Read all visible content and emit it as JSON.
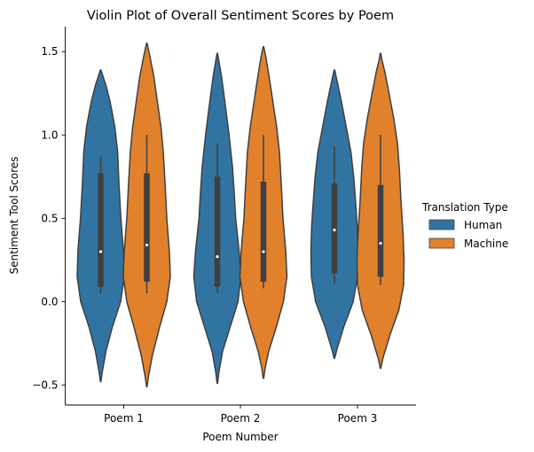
{
  "chart_data": {
    "type": "violin",
    "title": "Violin Plot of Overall Sentiment Scores by Poem",
    "xlabel": "Poem Number",
    "ylabel": "Sentiment Tool Scores",
    "categories": [
      "Poem 1",
      "Poem 2",
      "Poem 3"
    ],
    "ylim": [
      -0.62,
      1.65
    ],
    "yticks": [
      -0.5,
      0.0,
      0.5,
      1.0,
      1.5
    ],
    "ytick_labels": [
      "−0.5",
      "0.0",
      "0.5",
      "1.0",
      "1.5"
    ],
    "grid": false,
    "legend": {
      "title": "Translation Type",
      "placement": "right",
      "entries": [
        "Human",
        "Machine"
      ]
    },
    "series": [
      {
        "name": "Human",
        "color": "#3274a1",
        "violins": [
          {
            "category": "Poem 1",
            "min": -0.48,
            "max": 1.39,
            "q1": 0.09,
            "median": 0.3,
            "q3": 0.77,
            "whisker_low": 0.05,
            "whisker_high": 0.87,
            "profile": [
              [
                -0.48,
                0.01
              ],
              [
                -0.42,
                0.07
              ],
              [
                -0.3,
                0.22
              ],
              [
                -0.15,
                0.5
              ],
              [
                0.0,
                0.85
              ],
              [
                0.15,
                1.0
              ],
              [
                0.3,
                0.97
              ],
              [
                0.5,
                0.86
              ],
              [
                0.7,
                0.78
              ],
              [
                0.9,
                0.72
              ],
              [
                1.05,
                0.6
              ],
              [
                1.2,
                0.4
              ],
              [
                1.3,
                0.22
              ],
              [
                1.36,
                0.08
              ],
              [
                1.39,
                0.01
              ]
            ]
          },
          {
            "category": "Poem 2",
            "min": -0.49,
            "max": 1.49,
            "q1": 0.09,
            "median": 0.27,
            "q3": 0.75,
            "whisker_low": 0.05,
            "whisker_high": 0.95,
            "profile": [
              [
                -0.49,
                0.01
              ],
              [
                -0.42,
                0.07
              ],
              [
                -0.3,
                0.22
              ],
              [
                -0.15,
                0.55
              ],
              [
                0.0,
                0.88
              ],
              [
                0.15,
                1.0
              ],
              [
                0.3,
                0.93
              ],
              [
                0.5,
                0.78
              ],
              [
                0.65,
                0.72
              ],
              [
                0.8,
                0.65
              ],
              [
                1.0,
                0.5
              ],
              [
                1.2,
                0.32
              ],
              [
                1.35,
                0.18
              ],
              [
                1.45,
                0.06
              ],
              [
                1.49,
                0.01
              ]
            ]
          },
          {
            "category": "Poem 3",
            "min": -0.34,
            "max": 1.39,
            "q1": 0.17,
            "median": 0.43,
            "q3": 0.71,
            "whisker_low": 0.11,
            "whisker_high": 0.93,
            "profile": [
              [
                -0.34,
                0.01
              ],
              [
                -0.28,
                0.12
              ],
              [
                -0.15,
                0.4
              ],
              [
                0.0,
                0.8
              ],
              [
                0.15,
                0.98
              ],
              [
                0.3,
                1.0
              ],
              [
                0.45,
                0.97
              ],
              [
                0.6,
                0.9
              ],
              [
                0.75,
                0.82
              ],
              [
                0.9,
                0.7
              ],
              [
                1.05,
                0.5
              ],
              [
                1.2,
                0.3
              ],
              [
                1.32,
                0.12
              ],
              [
                1.39,
                0.01
              ]
            ]
          }
        ]
      },
      {
        "name": "Machine",
        "color": "#e1812c",
        "violins": [
          {
            "category": "Poem 1",
            "min": -0.51,
            "max": 1.55,
            "q1": 0.12,
            "median": 0.34,
            "q3": 0.77,
            "whisker_low": 0.05,
            "whisker_high": 1.0,
            "profile": [
              [
                -0.51,
                0.01
              ],
              [
                -0.45,
                0.07
              ],
              [
                -0.32,
                0.24
              ],
              [
                -0.15,
                0.55
              ],
              [
                0.0,
                0.85
              ],
              [
                0.15,
                1.0
              ],
              [
                0.3,
                0.96
              ],
              [
                0.5,
                0.85
              ],
              [
                0.7,
                0.78
              ],
              [
                0.9,
                0.7
              ],
              [
                1.05,
                0.6
              ],
              [
                1.2,
                0.45
              ],
              [
                1.35,
                0.3
              ],
              [
                1.48,
                0.12
              ],
              [
                1.55,
                0.01
              ]
            ]
          },
          {
            "category": "Poem 2",
            "min": -0.46,
            "max": 1.53,
            "q1": 0.12,
            "median": 0.3,
            "q3": 0.72,
            "whisker_low": 0.08,
            "whisker_high": 1.0,
            "profile": [
              [
                -0.46,
                0.01
              ],
              [
                -0.4,
                0.07
              ],
              [
                -0.3,
                0.22
              ],
              [
                -0.15,
                0.55
              ],
              [
                0.0,
                0.85
              ],
              [
                0.15,
                1.0
              ],
              [
                0.3,
                0.95
              ],
              [
                0.5,
                0.83
              ],
              [
                0.7,
                0.76
              ],
              [
                0.9,
                0.68
              ],
              [
                1.05,
                0.56
              ],
              [
                1.2,
                0.4
              ],
              [
                1.35,
                0.24
              ],
              [
                1.47,
                0.1
              ],
              [
                1.53,
                0.01
              ]
            ]
          },
          {
            "category": "Poem 3",
            "min": -0.4,
            "max": 1.49,
            "q1": 0.15,
            "median": 0.35,
            "q3": 0.7,
            "whisker_low": 0.1,
            "whisker_high": 1.0,
            "profile": [
              [
                -0.4,
                0.01
              ],
              [
                -0.34,
                0.1
              ],
              [
                -0.2,
                0.4
              ],
              [
                -0.05,
                0.78
              ],
              [
                0.1,
                0.98
              ],
              [
                0.25,
                1.0
              ],
              [
                0.4,
                0.96
              ],
              [
                0.6,
                0.87
              ],
              [
                0.8,
                0.8
              ],
              [
                0.95,
                0.72
              ],
              [
                1.1,
                0.56
              ],
              [
                1.25,
                0.36
              ],
              [
                1.38,
                0.18
              ],
              [
                1.45,
                0.06
              ],
              [
                1.49,
                0.01
              ]
            ]
          }
        ]
      }
    ]
  }
}
